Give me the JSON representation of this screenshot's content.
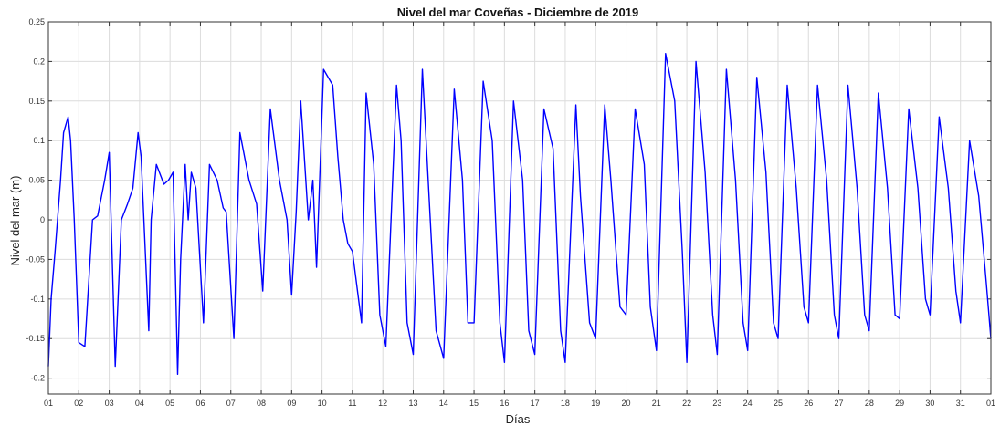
{
  "chart_data": {
    "type": "line",
    "title": "Nivel del mar Coveñas - Diciembre de 2019",
    "xlabel": "Días",
    "ylabel": "Nivel del mar (m)",
    "xlim": [
      1,
      32
    ],
    "ylim": [
      -0.22,
      0.25
    ],
    "grid": true,
    "x_tick_values": [
      1,
      2,
      3,
      4,
      5,
      6,
      7,
      8,
      9,
      10,
      11,
      12,
      13,
      14,
      15,
      16,
      17,
      18,
      19,
      20,
      21,
      22,
      23,
      24,
      25,
      26,
      27,
      28,
      29,
      30,
      31,
      32
    ],
    "x_tick_labels": [
      "01",
      "02",
      "03",
      "04",
      "05",
      "06",
      "07",
      "08",
      "09",
      "10",
      "11",
      "12",
      "13",
      "14",
      "15",
      "16",
      "17",
      "18",
      "19",
      "20",
      "21",
      "22",
      "23",
      "24",
      "25",
      "26",
      "27",
      "28",
      "29",
      "30",
      "31",
      "01"
    ],
    "y_tick_values": [
      -0.2,
      -0.15,
      -0.1,
      -0.05,
      0,
      0.05,
      0.1,
      0.15,
      0.2,
      0.25
    ],
    "y_tick_labels": [
      "-0.2",
      "-0.15",
      "-0.1",
      "-0.05",
      "0",
      "0.05",
      "0.1",
      "0.15",
      "0.2",
      "0.25"
    ],
    "series": [
      {
        "color": "#0000ff",
        "x": [
          1.0,
          1.09,
          1.22,
          1.4,
          1.5,
          1.65,
          1.73,
          1.85,
          2.0,
          2.2,
          2.45,
          2.62,
          2.85,
          3.0,
          3.2,
          3.4,
          3.6,
          3.78,
          3.95,
          4.05,
          4.3,
          4.38,
          4.55,
          4.8,
          4.95,
          5.1,
          5.25,
          5.35,
          5.5,
          5.6,
          5.7,
          5.85,
          6.1,
          6.3,
          6.55,
          6.75,
          6.85,
          7.1,
          7.3,
          7.6,
          7.85,
          8.05,
          8.3,
          8.6,
          8.85,
          9.0,
          9.15,
          9.3,
          9.55,
          9.7,
          9.82,
          10.05,
          10.35,
          10.52,
          10.7,
          10.85,
          11.0,
          11.3,
          11.45,
          11.7,
          11.9,
          12.1,
          12.45,
          12.6,
          12.8,
          13.0,
          13.3,
          13.45,
          13.75,
          14.0,
          14.35,
          14.62,
          14.8,
          15.0,
          15.3,
          15.6,
          15.85,
          16.0,
          16.3,
          16.6,
          16.8,
          17.0,
          17.3,
          17.6,
          17.85,
          18.0,
          18.35,
          18.5,
          18.8,
          19.0,
          19.3,
          19.5,
          19.8,
          20.0,
          20.3,
          20.6,
          20.8,
          21.0,
          21.3,
          21.6,
          21.85,
          22.0,
          22.3,
          22.6,
          22.85,
          23.0,
          23.3,
          23.6,
          23.85,
          24.0,
          24.3,
          24.6,
          24.85,
          25.0,
          25.3,
          25.6,
          25.85,
          26.0,
          26.3,
          26.6,
          26.85,
          27.0,
          27.3,
          27.6,
          27.85,
          28.0,
          28.3,
          28.6,
          28.85,
          29.0,
          29.3,
          29.6,
          29.85,
          30.0,
          30.3,
          30.6,
          30.85,
          31.0,
          31.3,
          31.6,
          31.85,
          32.0
        ],
        "y": [
          -0.185,
          -0.1,
          -0.04,
          0.05,
          0.11,
          0.13,
          0.1,
          0.0,
          -0.155,
          -0.16,
          0.0,
          0.005,
          0.05,
          0.085,
          -0.185,
          0.0,
          0.02,
          0.04,
          0.11,
          0.08,
          -0.14,
          0.0,
          0.07,
          0.045,
          0.05,
          0.06,
          -0.195,
          -0.05,
          0.07,
          0.0,
          0.06,
          0.04,
          -0.13,
          0.07,
          0.05,
          0.015,
          0.01,
          -0.15,
          0.11,
          0.05,
          0.02,
          -0.09,
          0.14,
          0.05,
          0.0,
          -0.095,
          0.01,
          0.15,
          0.0,
          0.05,
          -0.06,
          0.19,
          0.17,
          0.08,
          0.0,
          -0.03,
          -0.04,
          -0.13,
          0.16,
          0.07,
          -0.12,
          -0.16,
          0.17,
          0.1,
          -0.13,
          -0.17,
          0.19,
          0.08,
          -0.14,
          -0.175,
          0.165,
          0.05,
          -0.13,
          -0.13,
          0.175,
          0.1,
          -0.13,
          -0.18,
          0.15,
          0.05,
          -0.14,
          -0.17,
          0.14,
          0.09,
          -0.14,
          -0.18,
          0.145,
          0.03,
          -0.13,
          -0.15,
          0.145,
          0.05,
          -0.11,
          -0.12,
          0.14,
          0.07,
          -0.11,
          -0.165,
          0.21,
          0.15,
          -0.04,
          -0.18,
          0.2,
          0.06,
          -0.12,
          -0.17,
          0.19,
          0.05,
          -0.13,
          -0.165,
          0.18,
          0.06,
          -0.13,
          -0.15,
          0.17,
          0.04,
          -0.11,
          -0.13,
          0.17,
          0.05,
          -0.12,
          -0.15,
          0.17,
          0.04,
          -0.12,
          -0.14,
          0.16,
          0.04,
          -0.12,
          -0.125,
          0.14,
          0.04,
          -0.1,
          -0.12,
          0.13,
          0.04,
          -0.09,
          -0.13,
          0.1,
          0.03,
          -0.08,
          -0.15
        ]
      }
    ]
  }
}
